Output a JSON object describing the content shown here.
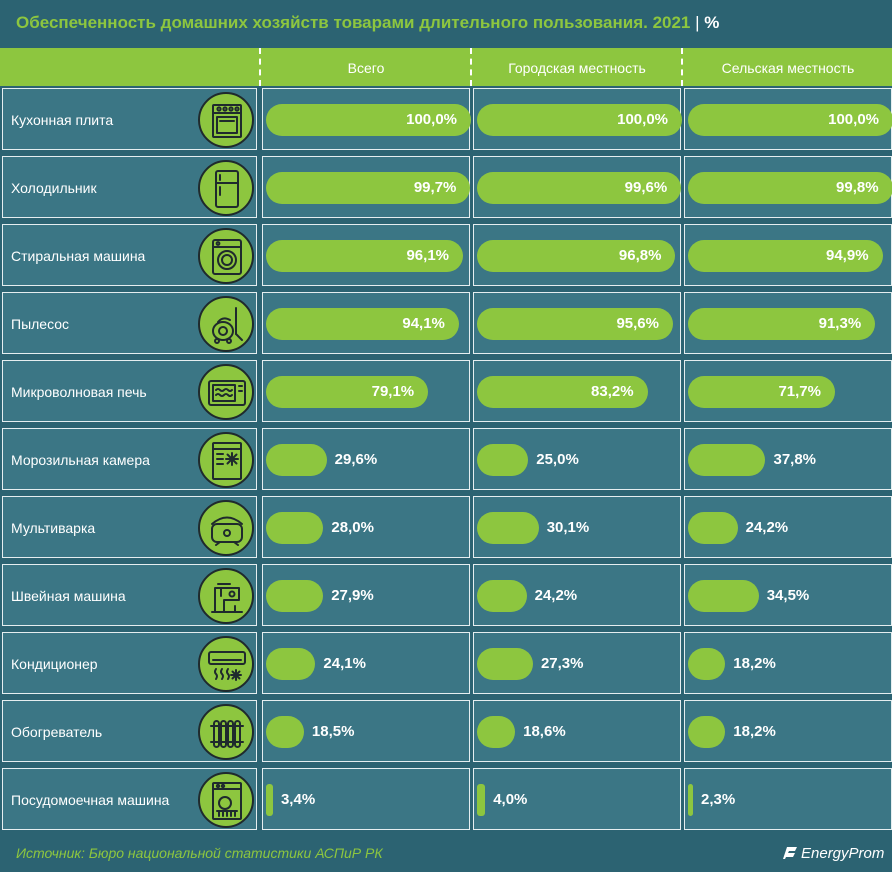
{
  "chart_data": {
    "type": "bar",
    "orientation": "horizontal",
    "title": "Обеспеченность домашних хозяйств товарами длительного пользования. 2021",
    "unit": "%",
    "categories": [
      "Кухонная плита",
      "Холодильник",
      "Стиральная машина",
      "Пылесос",
      "Микроволновая печь",
      "Морозильная камера",
      "Мультиварка",
      "Швейная машина",
      "Кондиционер",
      "Обогреватель",
      "Посудомоечная машина"
    ],
    "series": [
      {
        "name": "Всего",
        "values": [
          100.0,
          99.7,
          96.1,
          94.1,
          79.1,
          29.6,
          28.0,
          27.9,
          24.1,
          18.5,
          3.4
        ],
        "labels": [
          "100,0%",
          "99,7%",
          "96,1%",
          "94,1%",
          "79,1%",
          "29,6%",
          "28,0%",
          "27,9%",
          "24,1%",
          "18,5%",
          "3,4%"
        ]
      },
      {
        "name": "Городская местность",
        "values": [
          100.0,
          99.6,
          96.8,
          95.6,
          83.2,
          25.0,
          30.1,
          24.2,
          27.3,
          18.6,
          4.0
        ],
        "labels": [
          "100,0%",
          "99,6%",
          "96,8%",
          "95,6%",
          "83,2%",
          "25,0%",
          "30,1%",
          "24,2%",
          "27,3%",
          "18,6%",
          "4,0%"
        ]
      },
      {
        "name": "Сельская местность",
        "values": [
          100.0,
          99.8,
          94.9,
          91.3,
          71.7,
          37.8,
          24.2,
          34.5,
          18.2,
          18.2,
          2.3
        ],
        "labels": [
          "100,0%",
          "99,8%",
          "94,9%",
          "91,3%",
          "71,7%",
          "37,8%",
          "24,2%",
          "34,5%",
          "18,2%",
          "18,2%",
          "2,3%"
        ]
      }
    ],
    "xlim": [
      0,
      100
    ]
  },
  "icons": [
    "stove-icon",
    "fridge-icon",
    "washing-machine-icon",
    "vacuum-icon",
    "microwave-icon",
    "freezer-icon",
    "multicooker-icon",
    "sewing-machine-icon",
    "air-conditioner-icon",
    "heater-icon",
    "dishwasher-icon"
  ],
  "colors": {
    "background": "#2c6372",
    "cell": "#3b7685",
    "accent": "#8dc63f",
    "text": "#ffffff"
  },
  "header": {
    "title_sep": "|",
    "unit": "%"
  },
  "footer": {
    "source": "Источник: Бюро национальной статистики АСПиР РК",
    "brand": "EnergyProm"
  }
}
